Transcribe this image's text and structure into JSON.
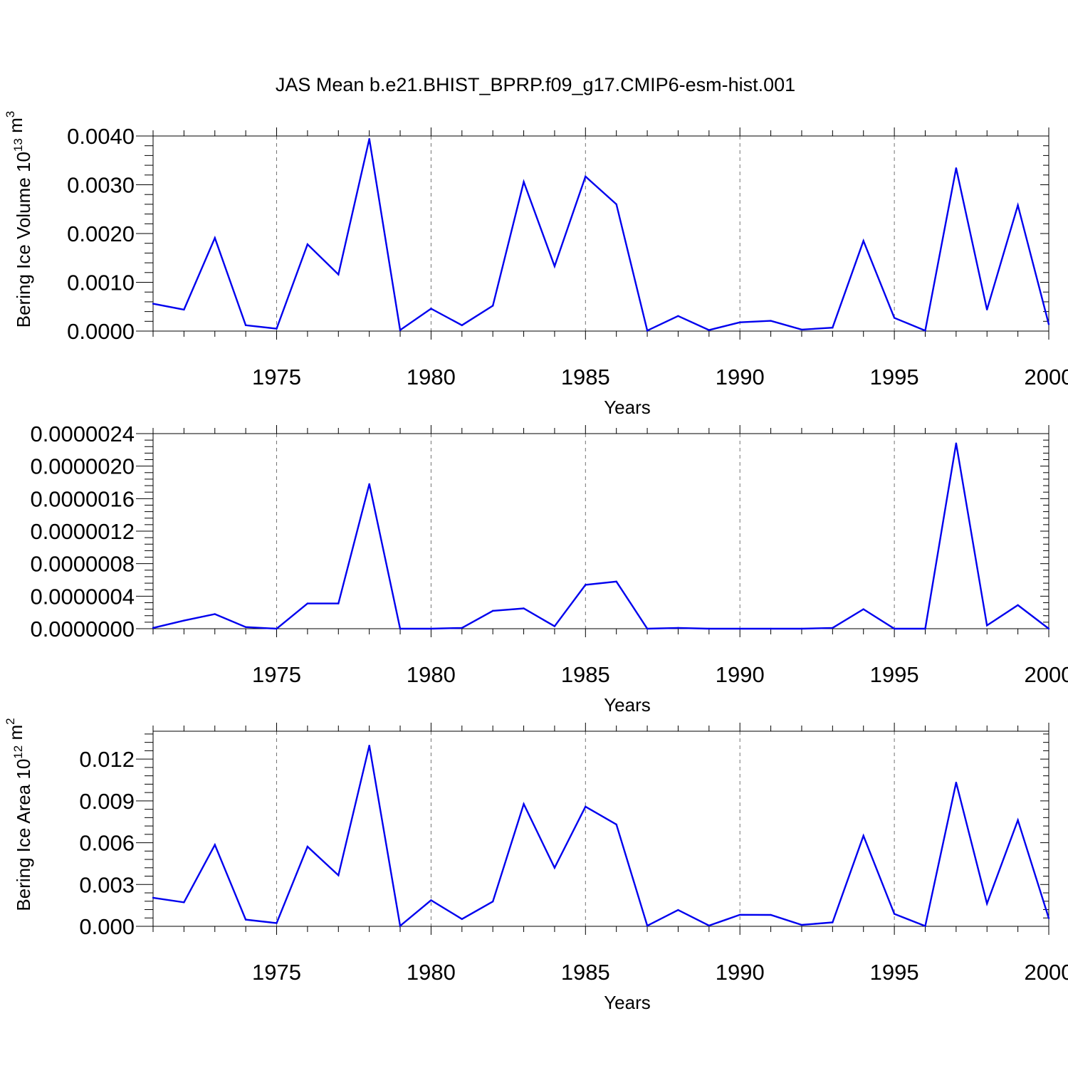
{
  "chart_data": [
    {
      "type": "line",
      "title": "JAS Mean b.e21.BHIST_BPRP.f09_g17.CMIP6-esm-hist.001",
      "xlabel": "Years",
      "ylabel": "Bering Ice Volume 10",
      "ylabel_exponent": "13",
      "ylabel_unit": "m",
      "ylabel_unit_exponent": "3",
      "xlim": [
        1971,
        2000
      ],
      "ylim": [
        0,
        0.004
      ],
      "x_ticks": [
        "1975",
        "1980",
        "1985",
        "1990",
        "1995",
        "2000"
      ],
      "y_ticks": [
        "0.0000",
        "0.0010",
        "0.0020",
        "0.0030",
        "0.0040"
      ],
      "y_tick_values": [
        0,
        0.001,
        0.002,
        0.003,
        0.004
      ],
      "grid": "vertical dashed at major x ticks",
      "series": [
        {
          "name": "Bering Ice Volume",
          "color": "#0000ee",
          "x": [
            1971,
            1972,
            1973,
            1974,
            1975,
            1976,
            1977,
            1978,
            1979,
            1980,
            1981,
            1982,
            1983,
            1984,
            1985,
            1986,
            1987,
            1988,
            1989,
            1990,
            1991,
            1992,
            1993,
            1994,
            1995,
            1996,
            1997,
            1998,
            1999,
            2000
          ],
          "values": [
            0.00056,
            0.00044,
            0.00191,
            0.00012,
            5e-05,
            0.00178,
            0.00116,
            0.00394,
            2e-05,
            0.00046,
            0.00012,
            0.00052,
            0.00306,
            0.00133,
            0.00317,
            0.0026,
            1e-05,
            0.00031,
            2e-05,
            0.00018,
            0.00021,
            3e-05,
            7e-05,
            0.00185,
            0.00027,
            1e-05,
            0.00334,
            0.00044,
            0.00258,
            0.00014
          ]
        }
      ]
    },
    {
      "type": "line",
      "title": "",
      "xlabel": "Years",
      "ylabel": "",
      "xlim": [
        1971,
        2000
      ],
      "ylim": [
        0,
        2.4e-06
      ],
      "x_ticks": [
        "1975",
        "1980",
        "1985",
        "1990",
        "1995",
        "2000"
      ],
      "y_ticks": [
        "0.0000000",
        "0.0000004",
        "0.0000008",
        "0.0000012",
        "0.0000016",
        "0.0000020",
        "0.0000024"
      ],
      "y_tick_values": [
        0,
        4e-07,
        8e-07,
        1.2e-06,
        1.6e-06,
        2e-06,
        2.4e-06
      ],
      "grid": "vertical dashed at major x ticks",
      "series": [
        {
          "name": "series",
          "color": "#0000ee",
          "x": [
            1971,
            1972,
            1973,
            1974,
            1975,
            1976,
            1977,
            1978,
            1979,
            1980,
            1981,
            1982,
            1983,
            1984,
            1985,
            1986,
            1987,
            1988,
            1989,
            1990,
            1991,
            1992,
            1993,
            1994,
            1995,
            1996,
            1997,
            1998,
            1999,
            2000
          ],
          "values": [
            1e-08,
            1e-07,
            1.8e-07,
            2e-08,
            0.0,
            3.1e-07,
            3.1e-07,
            1.78e-06,
            0.0,
            0.0,
            1e-08,
            2.2e-07,
            2.5e-07,
            3e-08,
            5.4e-07,
            5.8e-07,
            0.0,
            1e-08,
            0.0,
            0.0,
            0.0,
            0.0,
            1e-08,
            2.4e-07,
            0.0,
            0.0,
            2.28e-06,
            4e-08,
            2.9e-07,
            0.0
          ]
        }
      ]
    },
    {
      "type": "line",
      "title": "",
      "xlabel": "Years",
      "ylabel": "Bering Ice Area 10",
      "ylabel_exponent": "12",
      "ylabel_unit": "m",
      "ylabel_unit_exponent": "2",
      "xlim": [
        1971,
        2000
      ],
      "ylim": [
        0,
        0.014
      ],
      "x_ticks": [
        "1975",
        "1980",
        "1985",
        "1990",
        "1995",
        "2000"
      ],
      "y_ticks": [
        "0.000",
        "0.003",
        "0.006",
        "0.009",
        "0.012"
      ],
      "y_tick_values": [
        0,
        0.003,
        0.006,
        0.009,
        0.012
      ],
      "grid": "vertical dashed at major x ticks",
      "series": [
        {
          "name": "Bering Ice Area",
          "color": "#0000ee",
          "x": [
            1971,
            1972,
            1973,
            1974,
            1975,
            1976,
            1977,
            1978,
            1979,
            1980,
            1981,
            1982,
            1983,
            1984,
            1985,
            1986,
            1987,
            1988,
            1989,
            1990,
            1991,
            1992,
            1993,
            1994,
            1995,
            1996,
            1997,
            1998,
            1999,
            2000
          ],
          "values": [
            0.00205,
            0.00172,
            0.00585,
            0.00048,
            0.00023,
            0.00572,
            0.00366,
            0.01297,
            3e-05,
            0.00187,
            0.00052,
            0.00178,
            0.00878,
            0.0042,
            0.00859,
            0.00731,
            4e-05,
            0.00117,
            5e-05,
            0.00083,
            0.00082,
            0.0001,
            0.00028,
            0.0065,
            0.00089,
            2e-05,
            0.01032,
            0.00163,
            0.00762,
            0.00058
          ]
        }
      ]
    }
  ]
}
